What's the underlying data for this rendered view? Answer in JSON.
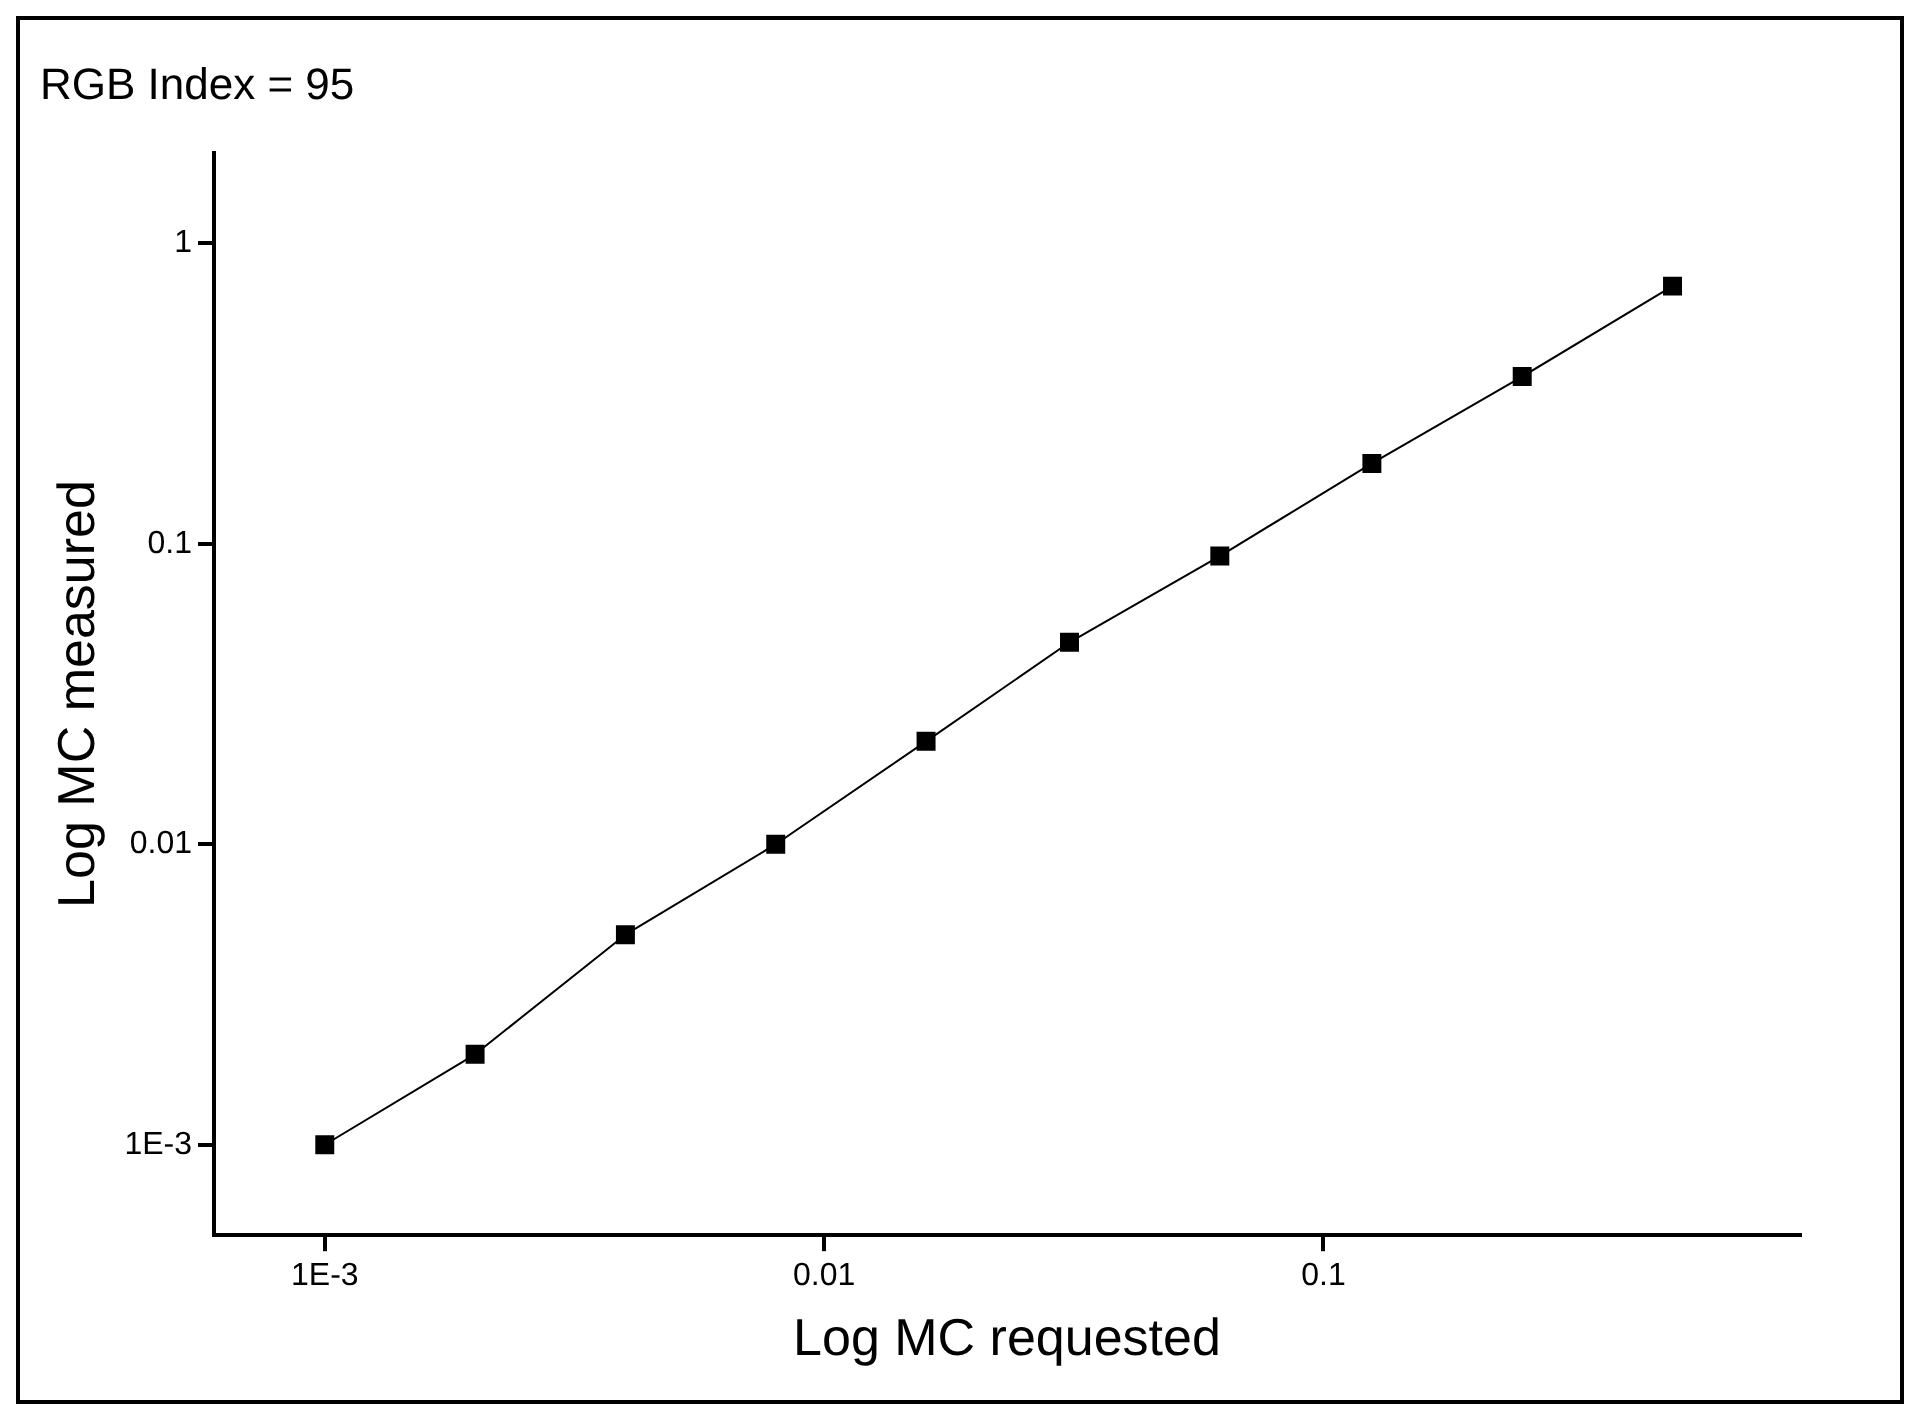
{
  "chart_data": {
    "type": "line",
    "title": "RGB Index = 95",
    "xlabel": "Log MC requested",
    "ylabel": "Log MC measured",
    "x": [
      0.001,
      0.002,
      0.004,
      0.008,
      0.016,
      0.031,
      0.062,
      0.125,
      0.25,
      0.5
    ],
    "series": [
      {
        "color": "#000000",
        "values": [
          0.001,
          0.002,
          0.005,
          0.01,
          0.022,
          0.047,
          0.091,
          0.185,
          0.36,
          0.72
        ]
      }
    ],
    "log": "xy",
    "marker": "square",
    "line_style": "solid",
    "grid": false,
    "legend": false,
    "xlim": [
      0.0006,
      0.9
    ],
    "xticks": [
      {
        "value": 0.001,
        "label": "1E-3"
      },
      0.01,
      0.1
    ],
    "ylim": [
      0.0005,
      2
    ],
    "yticks": [
      {
        "value": 0.001,
        "label": "1E-3"
      },
      0.01,
      0.1,
      1
    ]
  }
}
